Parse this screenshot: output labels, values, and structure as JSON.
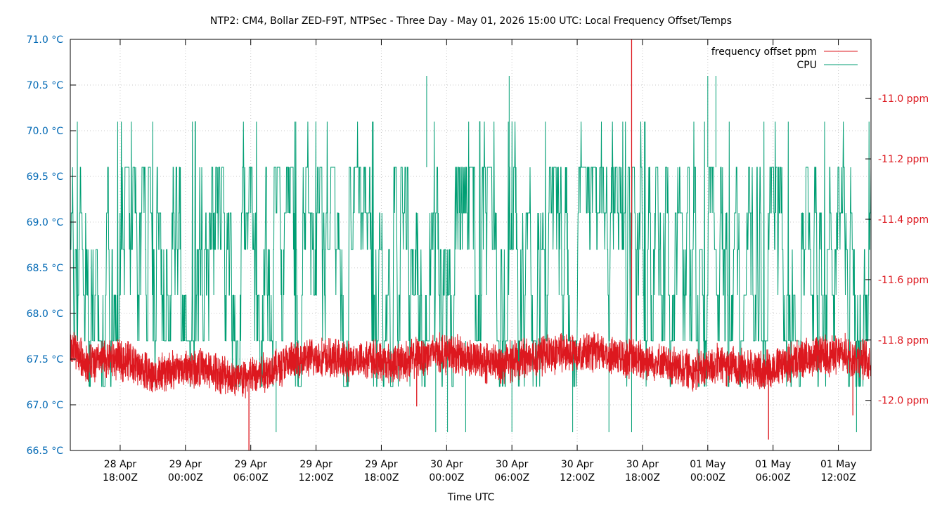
{
  "chart_data": {
    "type": "line",
    "title": "NTP2: CM4, Bollar ZED-F9T, NTPSec - Three Day - May 01, 2026 15:00 UTC: Local Frequency Offset/Temps",
    "xlabel": "Time UTC",
    "ylabel_left": "",
    "ylabel_right": "",
    "x_range": [
      "2026-04-28T13:25Z",
      "2026-05-01T15:00Z"
    ],
    "ylim_left": [
      66.5,
      71.0
    ],
    "ylim_right": [
      -12.166,
      -10.804
    ],
    "grid": true,
    "legend_position": "top-right",
    "x_ticks": [
      {
        "t": "2026-04-28T18:00Z",
        "line1": "28 Apr",
        "line2": "18:00Z"
      },
      {
        "t": "2026-04-29T00:00Z",
        "line1": "29 Apr",
        "line2": "00:00Z"
      },
      {
        "t": "2026-04-29T06:00Z",
        "line1": "29 Apr",
        "line2": "06:00Z"
      },
      {
        "t": "2026-04-29T12:00Z",
        "line1": "29 Apr",
        "line2": "12:00Z"
      },
      {
        "t": "2026-04-29T18:00Z",
        "line1": "29 Apr",
        "line2": "18:00Z"
      },
      {
        "t": "2026-04-30T00:00Z",
        "line1": "30 Apr",
        "line2": "00:00Z"
      },
      {
        "t": "2026-04-30T06:00Z",
        "line1": "30 Apr",
        "line2": "06:00Z"
      },
      {
        "t": "2026-04-30T12:00Z",
        "line1": "30 Apr",
        "line2": "12:00Z"
      },
      {
        "t": "2026-04-30T18:00Z",
        "line1": "30 Apr",
        "line2": "18:00Z"
      },
      {
        "t": "2026-05-01T00:00Z",
        "line1": "01 May",
        "line2": "00:00Z"
      },
      {
        "t": "2026-05-01T06:00Z",
        "line1": "01 May",
        "line2": "06:00Z"
      },
      {
        "t": "2026-05-01T12:00Z",
        "line1": "01 May",
        "line2": "12:00Z"
      }
    ],
    "y_ticks_left": [
      {
        "v": 71.0,
        "label": "71.0 °C"
      },
      {
        "v": 70.5,
        "label": "70.5 °C"
      },
      {
        "v": 70.0,
        "label": "70.0 °C"
      },
      {
        "v": 69.5,
        "label": "69.5 °C"
      },
      {
        "v": 69.0,
        "label": "69.0 °C"
      },
      {
        "v": 68.5,
        "label": "68.5 °C"
      },
      {
        "v": 68.0,
        "label": "68.0 °C"
      },
      {
        "v": 67.5,
        "label": "67.5 °C"
      },
      {
        "v": 67.0,
        "label": "67.0 °C"
      },
      {
        "v": 66.5,
        "label": "66.5 °C"
      }
    ],
    "y_ticks_right": [
      {
        "v": -11.0,
        "label": "-11.0 ppm"
      },
      {
        "v": -11.2,
        "label": "-11.2 ppm"
      },
      {
        "v": -11.4,
        "label": "-11.4 ppm"
      },
      {
        "v": -11.6,
        "label": "-11.6 ppm"
      },
      {
        "v": -11.8,
        "label": "-11.8 ppm"
      },
      {
        "v": -12.0,
        "label": "-12.0 ppm"
      }
    ],
    "series": [
      {
        "name": "frequency offset ppm",
        "axis": "right",
        "color": "#dd181f",
        "x_hours_note": "sampled points; dense noisy band",
        "points": [
          [
            "2026-04-28T13:25Z",
            -11.82
          ],
          [
            "2026-04-28T15:00Z",
            -11.88
          ],
          [
            "2026-04-28T17:00Z",
            -11.86
          ],
          [
            "2026-04-28T19:00Z",
            -11.87
          ],
          [
            "2026-04-28T21:00Z",
            -11.92
          ],
          [
            "2026-04-28T23:00Z",
            -11.9
          ],
          [
            "2026-04-29T01:00Z",
            -11.89
          ],
          [
            "2026-04-29T03:00Z",
            -11.91
          ],
          [
            "2026-04-29T05:00Z",
            -11.93
          ],
          [
            "2026-04-29T07:00Z",
            -11.91
          ],
          [
            "2026-04-29T09:00Z",
            -11.88
          ],
          [
            "2026-04-29T11:00Z",
            -11.86
          ],
          [
            "2026-04-29T13:00Z",
            -11.86
          ],
          [
            "2026-04-29T15:00Z",
            -11.87
          ],
          [
            "2026-04-29T17:00Z",
            -11.86
          ],
          [
            "2026-04-29T19:00Z",
            -11.88
          ],
          [
            "2026-04-29T21:00Z",
            -11.86
          ],
          [
            "2026-04-29T23:00Z",
            -11.84
          ],
          [
            "2026-04-30T01:00Z",
            -11.85
          ],
          [
            "2026-04-30T03:00Z",
            -11.87
          ],
          [
            "2026-04-30T05:00Z",
            -11.88
          ],
          [
            "2026-04-30T07:00Z",
            -11.86
          ],
          [
            "2026-04-30T09:00Z",
            -11.85
          ],
          [
            "2026-04-30T11:00Z",
            -11.84
          ],
          [
            "2026-04-30T13:00Z",
            -11.84
          ],
          [
            "2026-04-30T15:00Z",
            -11.85
          ],
          [
            "2026-04-30T17:00Z",
            -11.86
          ],
          [
            "2026-04-30T19:00Z",
            -11.87
          ],
          [
            "2026-04-30T21:00Z",
            -11.89
          ],
          [
            "2026-04-30T23:00Z",
            -11.9
          ],
          [
            "2026-05-01T01:00Z",
            -11.88
          ],
          [
            "2026-05-01T03:00Z",
            -11.89
          ],
          [
            "2026-05-01T05:00Z",
            -11.9
          ],
          [
            "2026-05-01T07:00Z",
            -11.88
          ],
          [
            "2026-05-01T09:00Z",
            -11.86
          ],
          [
            "2026-05-01T11:00Z",
            -11.85
          ],
          [
            "2026-05-01T13:00Z",
            -11.85
          ],
          [
            "2026-05-01T15:00Z",
            -11.87
          ]
        ],
        "spikes": [
          [
            "2026-04-29T05:50Z",
            -12.17
          ],
          [
            "2026-04-30T17:00Z",
            -10.8
          ],
          [
            "2026-04-29T21:15Z",
            -12.02
          ],
          [
            "2026-05-01T05:35Z",
            -12.13
          ],
          [
            "2026-05-01T13:20Z",
            -12.05
          ]
        ]
      },
      {
        "name": "CPU",
        "axis": "left",
        "color": "#009e73",
        "levels": [
          67.2,
          67.7,
          68.2,
          68.7,
          69.1,
          69.6,
          70.1,
          70.6
        ],
        "typical_range": [
          67.2,
          69.6
        ],
        "spikes_high": [
          [
            "2026-04-29T22:10Z",
            70.6
          ],
          [
            "2026-04-30T05:45Z",
            70.6
          ],
          [
            "2026-05-01T00:00Z",
            70.6
          ],
          [
            "2026-05-01T00:45Z",
            70.6
          ]
        ],
        "spikes_low": [
          [
            "2026-04-29T08:20Z",
            66.7
          ],
          [
            "2026-04-29T23:00Z",
            66.7
          ],
          [
            "2026-04-30T00:05Z",
            66.7
          ],
          [
            "2026-04-30T01:45Z",
            66.7
          ],
          [
            "2026-04-30T06:00Z",
            66.7
          ],
          [
            "2026-04-30T11:35Z",
            66.7
          ],
          [
            "2026-04-30T14:55Z",
            66.7
          ],
          [
            "2026-04-30T17:00Z",
            66.7
          ],
          [
            "2026-05-01T13:40Z",
            66.7
          ]
        ]
      }
    ]
  }
}
